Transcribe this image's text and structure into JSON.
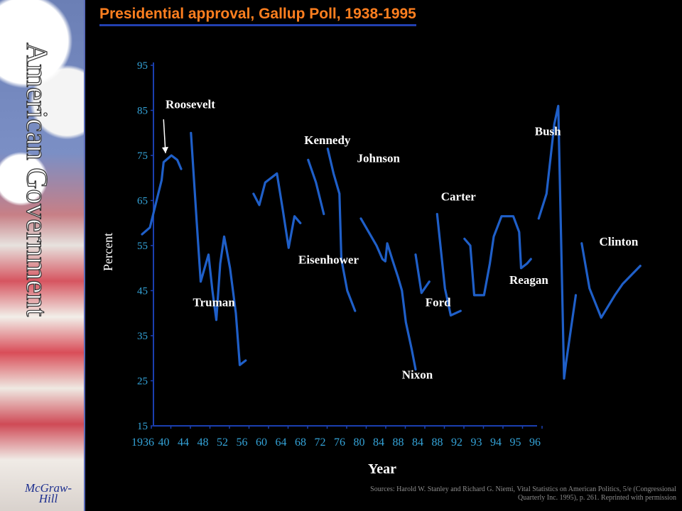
{
  "sidebar": {
    "title": "American Government",
    "publisher_line1": "McGraw-",
    "publisher_line2": "Hill"
  },
  "header": {
    "title": "Presidential approval, Gallup Poll, 1938-1995"
  },
  "chart_data": {
    "type": "line",
    "title": "Presidential approval, Gallup Poll, 1938-1995",
    "xlabel": "Year",
    "ylabel": "Percent",
    "x_ticks": [
      "1936",
      "40",
      "44",
      "48",
      "52",
      "56",
      "60",
      "64",
      "68",
      "72",
      "76",
      "80",
      "84",
      "88",
      "84",
      "88",
      "92",
      "93",
      "94",
      "95",
      "96"
    ],
    "y_ticks": [
      95,
      85,
      75,
      65,
      55,
      45,
      35,
      25,
      15
    ],
    "ylim": [
      15,
      95
    ],
    "grid": false,
    "line_color": "#1f5fc8",
    "series": [
      {
        "name": "Roosevelt",
        "points": [
          [
            0.0,
            57.5
          ],
          [
            0.4,
            59
          ],
          [
            1.0,
            69.5
          ],
          [
            1.1,
            73.5
          ],
          [
            1.5,
            75
          ],
          [
            1.8,
            74
          ],
          [
            2.0,
            72
          ]
        ]
      },
      {
        "name": "Truman",
        "points": [
          [
            2.5,
            80
          ],
          [
            2.8,
            60
          ],
          [
            3.0,
            47
          ],
          [
            3.2,
            50
          ],
          [
            3.4,
            53
          ],
          [
            3.6,
            45
          ],
          [
            3.8,
            38.5
          ],
          [
            4.0,
            51
          ],
          [
            4.2,
            57
          ],
          [
            4.5,
            50
          ],
          [
            4.8,
            40
          ],
          [
            5.0,
            28.5
          ],
          [
            5.3,
            29.5
          ]
        ]
      },
      {
        "name": "Eisenhower",
        "points": [
          [
            5.7,
            66.5
          ],
          [
            6.0,
            64
          ],
          [
            6.3,
            69
          ],
          [
            6.6,
            70
          ],
          [
            6.9,
            71
          ],
          [
            7.2,
            63
          ],
          [
            7.5,
            54.5
          ],
          [
            7.8,
            61.5
          ],
          [
            8.1,
            60
          ]
        ]
      },
      {
        "name": "Kennedy",
        "points": [
          [
            8.5,
            74
          ],
          [
            8.9,
            69
          ],
          [
            9.3,
            62
          ]
        ]
      },
      {
        "name": "Johnson",
        "points": [
          [
            9.5,
            76.5
          ],
          [
            9.8,
            71
          ],
          [
            10.1,
            66.5
          ],
          [
            10.2,
            52
          ],
          [
            10.5,
            45
          ],
          [
            10.9,
            40.5
          ]
        ]
      },
      {
        "name": "Nixon",
        "points": [
          [
            11.2,
            61
          ],
          [
            11.6,
            58
          ],
          [
            12.0,
            55
          ],
          [
            12.3,
            52
          ],
          [
            12.45,
            51.5
          ],
          [
            12.55,
            55.5
          ],
          [
            12.8,
            52
          ],
          [
            13.1,
            48
          ],
          [
            13.3,
            45
          ],
          [
            13.5,
            38
          ],
          [
            13.8,
            32
          ],
          [
            14.0,
            27.5
          ]
        ]
      },
      {
        "name": "Ford",
        "points": [
          [
            14.0,
            53
          ],
          [
            14.3,
            44.5
          ],
          [
            14.7,
            47
          ]
        ]
      },
      {
        "name": "Carter",
        "points": [
          [
            15.1,
            62
          ],
          [
            15.5,
            45.5
          ],
          [
            15.8,
            39.5
          ],
          [
            16.3,
            40.5
          ]
        ]
      },
      {
        "name": "Reagan",
        "points": [
          [
            16.5,
            56.5
          ],
          [
            16.8,
            55
          ],
          [
            17.0,
            44
          ],
          [
            17.3,
            44
          ],
          [
            17.5,
            44
          ],
          [
            17.8,
            51
          ],
          [
            18.0,
            57
          ],
          [
            18.4,
            61.5
          ],
          [
            18.8,
            61.5
          ],
          [
            19.0,
            61.5
          ],
          [
            19.3,
            58
          ],
          [
            19.4,
            50
          ],
          [
            19.7,
            51
          ],
          [
            19.9,
            52
          ]
        ]
      },
      {
        "name": "Bush",
        "points": [
          [
            20.3,
            61
          ],
          [
            20.7,
            66.5
          ],
          [
            21.1,
            82
          ],
          [
            21.3,
            86
          ],
          [
            21.6,
            25.5
          ],
          [
            21.7,
            29
          ],
          [
            22.2,
            44
          ]
        ]
      },
      {
        "name": "Clinton",
        "points": [
          [
            22.5,
            55.5
          ],
          [
            22.9,
            45.5
          ],
          [
            23.5,
            39
          ],
          [
            24.2,
            44
          ],
          [
            24.6,
            46.5
          ],
          [
            25.5,
            50.5
          ]
        ]
      }
    ],
    "annotations": [
      {
        "text": "Roosevelt",
        "year": 1.2,
        "pct": 85.5
      },
      {
        "text": "Truman",
        "year": 2.6,
        "pct": 41.5
      },
      {
        "text": "Eisenhower",
        "year": 8.0,
        "pct": 51
      },
      {
        "text": "Kennedy",
        "year": 8.3,
        "pct": 77.5
      },
      {
        "text": "Johnson",
        "year": 11.0,
        "pct": 73.5
      },
      {
        "text": "Nixon",
        "year": 13.3,
        "pct": 25.5
      },
      {
        "text": "Ford",
        "year": 14.5,
        "pct": 41.5
      },
      {
        "text": "Carter",
        "year": 15.3,
        "pct": 65
      },
      {
        "text": "Reagan",
        "year": 18.8,
        "pct": 46.5
      },
      {
        "text": "Bush",
        "year": 20.1,
        "pct": 79.5
      },
      {
        "text": "Clinton",
        "year": 23.4,
        "pct": 55
      }
    ]
  },
  "footer": {
    "sources": "Sources: Harold W. Stanley and Richard G. Niemi, Vital Statistics on American Politics, 5/e (Congressional Quarterly Inc. 1995), p. 261. Reprinted with permission"
  }
}
